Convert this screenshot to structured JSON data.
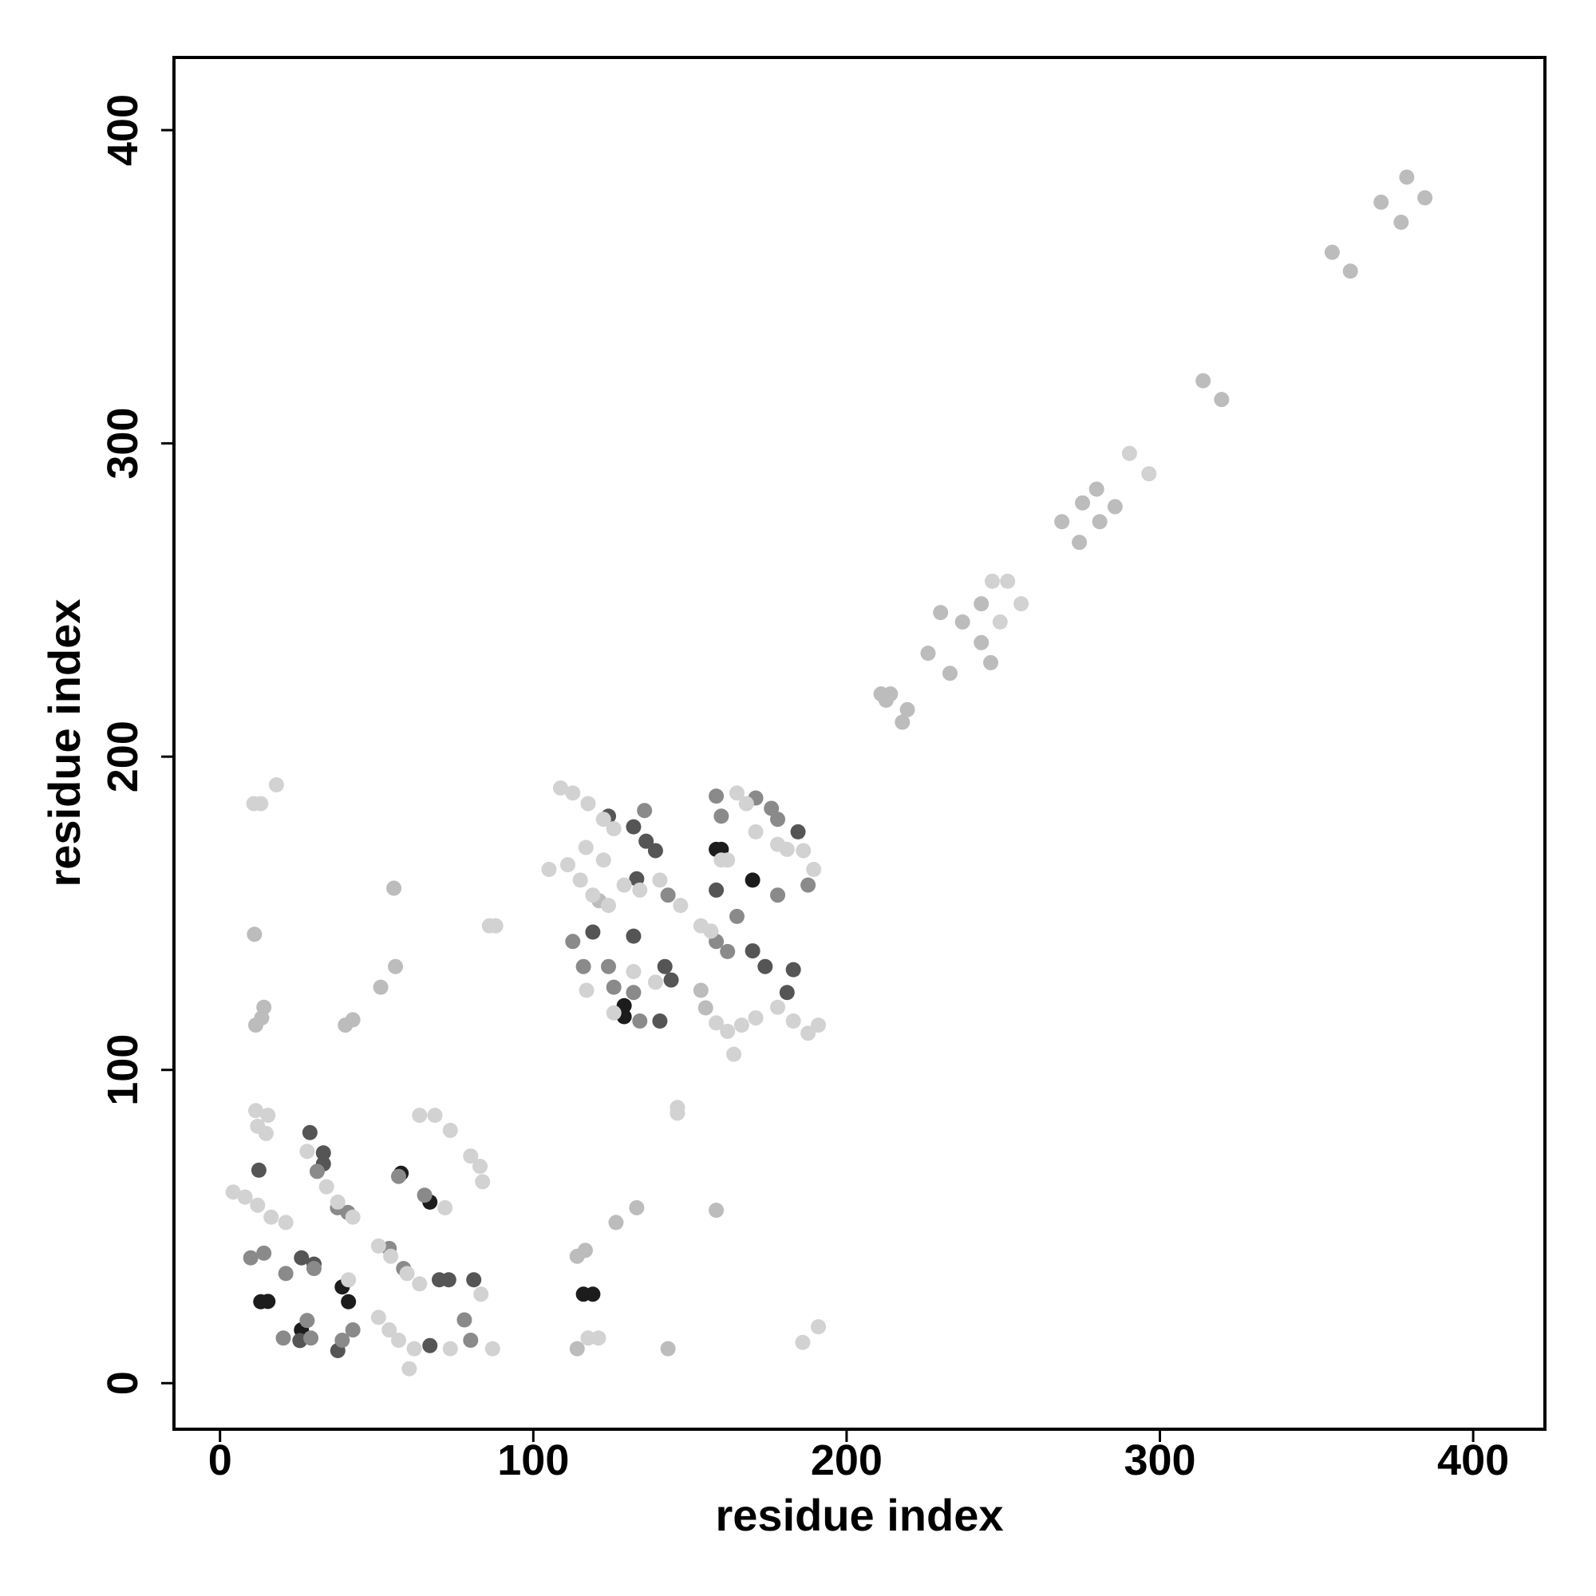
{
  "chart_data": {
    "type": "scatter",
    "xlabel": "residue index",
    "ylabel": "residue index",
    "xlim": [
      -14.7,
      422.9
    ],
    "ylim": [
      -14.7,
      423.2
    ],
    "xticks": [
      0,
      100,
      200,
      300,
      400
    ],
    "yticks": [
      0,
      100,
      200,
      300,
      400
    ],
    "grid": false,
    "series": [
      {
        "color": "#1c1c1c",
        "x": [
          15.3,
          13,
          26,
          39,
          41,
          57.8,
          67,
          116,
          119,
          129,
          129,
          160,
          170,
          158.4
        ],
        "values": [
          26.1,
          26,
          17,
          30.7,
          26,
          67,
          57.8,
          28.4,
          28.4,
          120.5,
          117,
          170.4,
          160.6,
          170.4
        ]
      },
      {
        "color": "#555555",
        "x": [
          12.4,
          28.7,
          33,
          33,
          26,
          30,
          70,
          73,
          81,
          37.6,
          124,
          132,
          136,
          139,
          132,
          142,
          144,
          119,
          158.4,
          170,
          174,
          183,
          181,
          184.5,
          133,
          140.4,
          67,
          25.5
        ],
        "values": [
          68,
          80,
          73.5,
          70,
          40,
          38,
          33,
          33,
          33,
          10.4,
          181,
          177.6,
          173,
          170,
          142.7,
          133,
          128.7,
          144,
          157.4,
          138,
          133,
          132,
          124.7,
          176,
          161,
          115.6,
          12,
          13.6
        ]
      },
      {
        "color": "#8a8a8a",
        "x": [
          9.8,
          14,
          21,
          30,
          27.8,
          20.2,
          29,
          42.4,
          39,
          37.5,
          40.8,
          31,
          54,
          58.6,
          78,
          80,
          57,
          65.3,
          112.6,
          116,
          124,
          125.7,
          134,
          132,
          143,
          158.4,
          160,
          171,
          176,
          165,
          158.4,
          162,
          178,
          187.7,
          178,
          135.5
        ],
        "values": [
          40,
          41.5,
          35,
          36.6,
          20,
          14.4,
          14.4,
          17,
          13.7,
          56,
          54.5,
          67.6,
          43,
          36.6,
          20.2,
          13.7,
          66,
          60,
          141,
          133,
          133,
          126.4,
          115.6,
          124.7,
          155.8,
          187.4,
          181,
          186.8,
          183.5,
          149,
          141,
          137.8,
          155.8,
          159,
          180,
          182.8
        ]
      },
      {
        "color": "#bcbcbc",
        "x": [
          378.8,
          370.6,
          377,
          384.6,
          355,
          360.8,
          313.8,
          319.7,
          268.7,
          274.3,
          275.3,
          279.8,
          280.8,
          285.7,
          243,
          237,
          230,
          243,
          246,
          226,
          233,
          211,
          214,
          219.4,
          217.8,
          212.6,
          11,
          11.4,
          14,
          13.3,
          55.5,
          56,
          51.3,
          40,
          42.4,
          114,
          116.6,
          126.4,
          133,
          158.4,
          114,
          143,
          153.5,
          155,
          121
        ],
        "values": [
          385,
          377,
          370.6,
          378.4,
          361,
          355,
          320,
          314,
          275,
          268.4,
          281,
          285.4,
          275,
          279.8,
          248.8,
          243,
          246,
          236.4,
          230,
          233,
          226.6,
          220,
          220,
          215,
          211,
          218,
          143.3,
          114.3,
          120,
          116.6,
          158,
          133,
          126.4,
          114.3,
          116,
          40.5,
          42.4,
          51.3,
          56,
          55.2,
          11,
          11,
          125.4,
          119.8,
          154
        ]
      },
      {
        "color": "#d2d2d2",
        "x": [
          290.3,
          296.5,
          246.5,
          251.4,
          255.7,
          249,
          10.8,
          13,
          18,
          86,
          88,
          146,
          146,
          117.5,
          120.8,
          186,
          191,
          4.2,
          8,
          12,
          16.3,
          21,
          11.4,
          12,
          14.7,
          15.3,
          27.8,
          34,
          37.6,
          42.4,
          50.6,
          54.5,
          59.7,
          63.7,
          63.7,
          68.6,
          73.5,
          71.8,
          80,
          83,
          83.8,
          83.3,
          87,
          73.5,
          62,
          60.4,
          50.6,
          54,
          57,
          41,
          108.7,
          112.6,
          117.5,
          122.4,
          125.7,
          105,
          111,
          115,
          119,
          124,
          129,
          134,
          140.4,
          147,
          116.8,
          122.4,
          153.5,
          156.7,
          158.4,
          162,
          166.5,
          171,
          164,
          178,
          183,
          187.7,
          191,
          189.5,
          186.2,
          181,
          178,
          171,
          168,
          165,
          132,
          139,
          117,
          125.7,
          160,
          162
        ],
        "values": [
          296.8,
          290.3,
          256,
          256,
          248.8,
          243,
          185,
          185,
          191,
          146,
          146,
          86.2,
          88,
          14.4,
          14.4,
          13,
          18,
          61,
          59.4,
          56.8,
          53,
          51.3,
          87,
          82,
          79.7,
          85.5,
          74,
          62.7,
          57.8,
          53,
          43.8,
          40.5,
          35,
          31.7,
          85.5,
          85.5,
          80.7,
          56,
          72.5,
          69.2,
          64.3,
          28.4,
          11,
          11,
          11,
          4.6,
          21,
          17,
          13.7,
          33,
          190,
          188.4,
          185,
          180,
          177,
          164,
          165.5,
          160.6,
          155.8,
          152.5,
          159,
          157.4,
          160.6,
          152.5,
          171,
          167,
          146,
          144.3,
          115,
          112.3,
          114.3,
          116.6,
          105,
          120,
          115.6,
          111.7,
          114.3,
          164,
          170,
          170.4,
          172,
          176,
          185,
          188.4,
          131.4,
          128,
          125.4,
          118.2,
          167,
          167
        ]
      }
    ]
  }
}
